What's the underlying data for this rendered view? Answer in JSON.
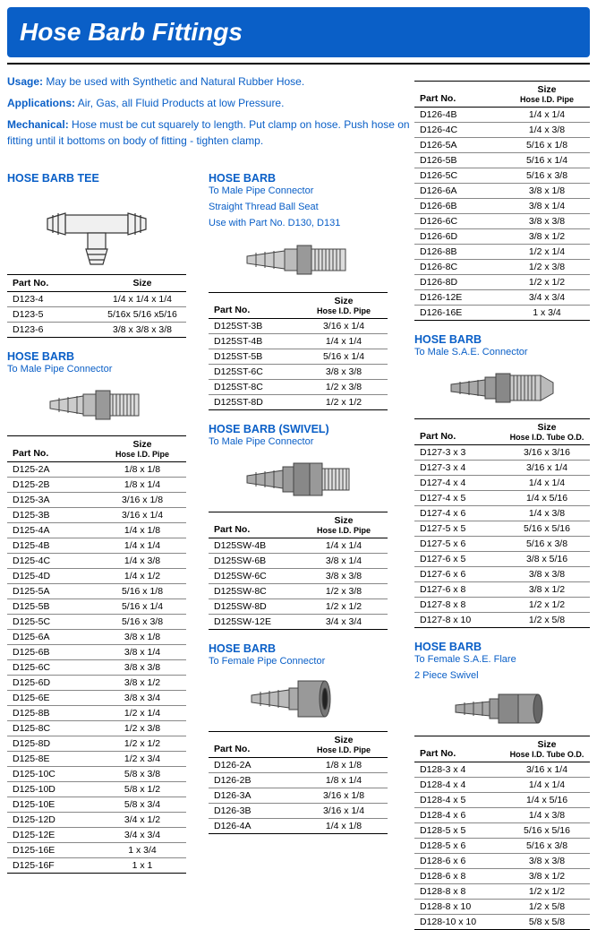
{
  "banner_title": "Hose Barb Fittings",
  "intro": {
    "usage_label": "Usage:",
    "usage_text": "May be used with Synthetic and Natural Rubber Hose.",
    "applications_label": "Applications:",
    "applications_text": "Air, Gas, all Fluid Products at low Pressure.",
    "mechanical_label": "Mechanical:",
    "mechanical_text": "Hose must be cut squarely to length. Put clamp on hose. Push hose on fitting until it bottoms on body of fitting - tighten clamp."
  },
  "styling": {
    "banner_bg": "#0a5fc7",
    "banner_color": "#ffffff",
    "banner_fontsize": 28,
    "section_title_color": "#0a5fc7",
    "body_fontsize": 11,
    "table_fontsize": 10.5,
    "border_color": "#000000",
    "row_border_color": "#888888"
  },
  "headers": {
    "partno": "Part No.",
    "size": "Size",
    "hose_id_pipe": "Hose I.D. Pipe",
    "hose_id_tube_od": "Hose I.D. Tube O.D."
  },
  "figures": {
    "tee_color": "#333333",
    "tee_fill": "#f0f0f0",
    "male_color": "#444444",
    "male_fill": "#cccccc",
    "swivel_fill": "#aaaaaa",
    "female_fill": "#bbbbbb",
    "sae_fill": "#a8a8a8"
  },
  "sections": {
    "tee": {
      "title": "HOSE BARB TEE",
      "size_sub": "",
      "rows": [
        {
          "part": "D123-4",
          "size": "1/4 x 1/4 x 1/4"
        },
        {
          "part": "D123-5",
          "size": "5/16x 5/16 x5/16"
        },
        {
          "part": "D123-6",
          "size": "3/8 x 3/8 x 3/8"
        }
      ]
    },
    "male_pipe": {
      "title": "HOSE BARB",
      "sub": "To Male Pipe Connector",
      "size_sub": "Hose I.D. Pipe",
      "rows": [
        {
          "part": "D125-2A",
          "size": "1/8 x 1/8"
        },
        {
          "part": "D125-2B",
          "size": "1/8 x 1/4"
        },
        {
          "part": "D125-3A",
          "size": "3/16 x 1/8"
        },
        {
          "part": "D125-3B",
          "size": "3/16 x 1/4"
        },
        {
          "part": "D125-4A",
          "size": "1/4 x 1/8"
        },
        {
          "part": "D125-4B",
          "size": "1/4 x 1/4"
        },
        {
          "part": "D125-4C",
          "size": "1/4 x 3/8"
        },
        {
          "part": "D125-4D",
          "size": "1/4 x 1/2"
        },
        {
          "part": "D125-5A",
          "size": "5/16 x 1/8"
        },
        {
          "part": "D125-5B",
          "size": "5/16 x 1/4"
        },
        {
          "part": "D125-5C",
          "size": "5/16 x 3/8"
        },
        {
          "part": "D125-6A",
          "size": "3/8 x 1/8"
        },
        {
          "part": "D125-6B",
          "size": "3/8 x 1/4"
        },
        {
          "part": "D125-6C",
          "size": "3/8 x 3/8"
        },
        {
          "part": "D125-6D",
          "size": "3/8 x 1/2"
        },
        {
          "part": "D125-6E",
          "size": "3/8 x 3/4"
        },
        {
          "part": "D125-8B",
          "size": "1/2 x 1/4"
        },
        {
          "part": "D125-8C",
          "size": "1/2 x 3/8"
        },
        {
          "part": "D125-8D",
          "size": "1/2 x 1/2"
        },
        {
          "part": "D125-8E",
          "size": "1/2 x 3/4"
        },
        {
          "part": "D125-10C",
          "size": "5/8 x 3/8"
        },
        {
          "part": "D125-10D",
          "size": "5/8 x 1/2"
        },
        {
          "part": "D125-10E",
          "size": "5/8 x 3/4"
        },
        {
          "part": "D125-12D",
          "size": "3/4 x 1/2"
        },
        {
          "part": "D125-12E",
          "size": "3/4 x 3/4"
        },
        {
          "part": "D125-16E",
          "size": "1 x 3/4"
        },
        {
          "part": "D125-16F",
          "size": "1 x 1"
        }
      ]
    },
    "male_st": {
      "title": "HOSE BARB",
      "sub1": "To Male Pipe Connector",
      "sub2": "Straight Thread Ball Seat",
      "sub3": "Use with Part No. D130, D131",
      "size_sub": "Hose I.D. Pipe",
      "rows": [
        {
          "part": "D125ST-3B",
          "size": "3/16 x 1/4"
        },
        {
          "part": "D125ST-4B",
          "size": "1/4 x 1/4"
        },
        {
          "part": "D125ST-5B",
          "size": "5/16 x 1/4"
        },
        {
          "part": "D125ST-6C",
          "size": "3/8 x 3/8"
        },
        {
          "part": "D125ST-8C",
          "size": "1/2 x 3/8"
        },
        {
          "part": "D125ST-8D",
          "size": "1/2 x 1/2"
        }
      ]
    },
    "swivel": {
      "title": "HOSE BARB (SWIVEL)",
      "sub": "To Male Pipe Connector",
      "size_sub": "Hose I.D. Pipe",
      "rows": [
        {
          "part": "D125SW-4B",
          "size": "1/4 x 1/4"
        },
        {
          "part": "D125SW-6B",
          "size": "3/8 x 1/4"
        },
        {
          "part": "D125SW-6C",
          "size": "3/8 x 3/8"
        },
        {
          "part": "D125SW-8C",
          "size": "1/2 x 3/8"
        },
        {
          "part": "D125SW-8D",
          "size": "1/2 x 1/2"
        },
        {
          "part": "D125SW-12E",
          "size": "3/4 x 3/4"
        }
      ]
    },
    "female_pipe_low": {
      "title": "HOSE BARB",
      "sub": "To Female Pipe Connector",
      "size_sub": "Hose I.D. Pipe",
      "rows": [
        {
          "part": "D126-2A",
          "size": "1/8  x  1/8"
        },
        {
          "part": "D126-2B",
          "size": "1/8  x  1/4"
        },
        {
          "part": "D126-3A",
          "size": "3/16 x 1/8"
        },
        {
          "part": "D126-3B",
          "size": "3/16 x 1/4"
        },
        {
          "part": "D126-4A",
          "size": "1/4  x  1/8"
        }
      ]
    },
    "female_pipe_top": {
      "size_sub": "Hose I.D. Pipe",
      "rows": [
        {
          "part": "D126-4B",
          "size": "1/4  x  1/4"
        },
        {
          "part": "D126-4C",
          "size": "1/4  x  3/8"
        },
        {
          "part": "D126-5A",
          "size": "5/16  x  1/8"
        },
        {
          "part": "D126-5B",
          "size": "5/16  x  1/4"
        },
        {
          "part": "D126-5C",
          "size": "5/16  x  3/8"
        },
        {
          "part": "D126-6A",
          "size": "3/8  x  1/8"
        },
        {
          "part": "D126-6B",
          "size": "3/8  x  1/4"
        },
        {
          "part": "D126-6C",
          "size": "3/8  x  3/8"
        },
        {
          "part": "D126-6D",
          "size": "3/8  x  1/2"
        },
        {
          "part": "D126-8B",
          "size": "1/2  x  1/4"
        },
        {
          "part": "D126-8C",
          "size": "1/2  x  3/8"
        },
        {
          "part": "D126-8D",
          "size": "1/2  x  1/2"
        },
        {
          "part": "D126-12E",
          "size": "3/4  x  3/4"
        },
        {
          "part": "D126-16E",
          "size": "1   x  3/4"
        }
      ]
    },
    "sae_male": {
      "title": "HOSE BARB",
      "sub": "To Male S.A.E. Connector",
      "size_sub": "Hose I.D. Tube O.D.",
      "rows": [
        {
          "part": "D127-3 x 3",
          "size": "3/16 x 3/16"
        },
        {
          "part": "D127-3 x 4",
          "size": "3/16 x 1/4"
        },
        {
          "part": "D127-4 x 4",
          "size": "1/4 x 1/4"
        },
        {
          "part": "D127-4 x 5",
          "size": "1/4 x 5/16"
        },
        {
          "part": "D127-4 x 6",
          "size": "1/4 x 3/8"
        },
        {
          "part": "D127-5 x 5",
          "size": "5/16 x 5/16"
        },
        {
          "part": "D127-5 x 6",
          "size": "5/16 x 3/8"
        },
        {
          "part": "D127-6 x 5",
          "size": "3/8 x 5/16"
        },
        {
          "part": "D127-6 x 6",
          "size": "3/8 x 3/8"
        },
        {
          "part": "D127-6 x 8",
          "size": "3/8 x 1/2"
        },
        {
          "part": "D127-8 x 8",
          "size": "1/2 x 1/2"
        },
        {
          "part": "D127-8 x 10",
          "size": "1/2 x 5/8"
        }
      ]
    },
    "sae_female": {
      "title": "HOSE BARB",
      "sub1": "To Female S.A.E. Flare",
      "sub2": "2 Piece Swivel",
      "size_sub": "Hose I.D. Tube O.D.",
      "rows": [
        {
          "part": "D128-3 x 4",
          "size": "3/16 x 1/4"
        },
        {
          "part": "D128-4 x 4",
          "size": "1/4 x 1/4"
        },
        {
          "part": "D128-4 x 5",
          "size": "1/4 x 5/16"
        },
        {
          "part": "D128-4 x 6",
          "size": "1/4 x 3/8"
        },
        {
          "part": "D128-5 x 5",
          "size": "5/16 x 5/16"
        },
        {
          "part": "D128-5 x 6",
          "size": "5/16 x 3/8"
        },
        {
          "part": "D128-6 x 6",
          "size": "3/8 x 3/8"
        },
        {
          "part": "D128-6 x 8",
          "size": "3/8 x 1/2"
        },
        {
          "part": "D128-8 x 8",
          "size": "1/2 x 1/2"
        },
        {
          "part": "D128-8 x 10",
          "size": "1/2 x 5/8"
        },
        {
          "part": "D128-10 x 10",
          "size": "5/8 x 5/8"
        }
      ]
    }
  }
}
